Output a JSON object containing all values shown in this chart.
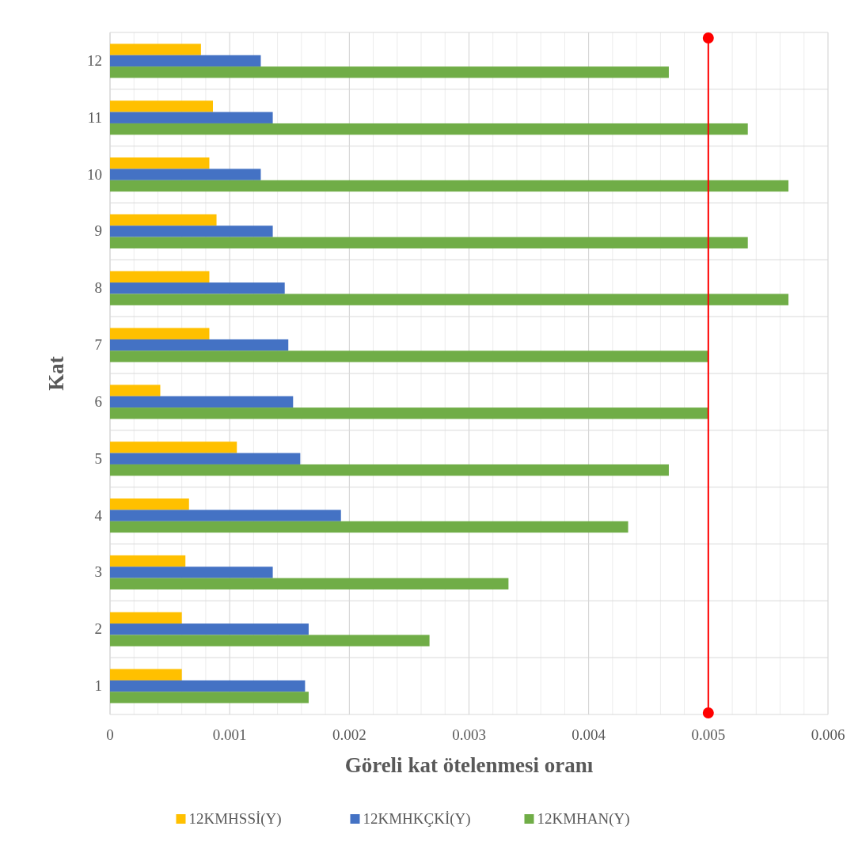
{
  "chart_data": {
    "type": "bar",
    "orientation": "horizontal",
    "xlabel": "Göreli kat ötelenmesi oranı",
    "ylabel": "Kat",
    "categories": [
      "12",
      "11",
      "10",
      "9",
      "8",
      "7",
      "6",
      "5",
      "4",
      "3",
      "2",
      "1"
    ],
    "series": [
      {
        "name": "12KMHSSİ(Y)",
        "color": "#ffc000",
        "values": [
          0.00076,
          0.00086,
          0.00083,
          0.00089,
          0.00083,
          0.00083,
          0.00042,
          0.00106,
          0.00066,
          0.00063,
          0.0006,
          0.0006
        ]
      },
      {
        "name": "12KMHKÇKİ(Y)",
        "color": "#4472c4",
        "values": [
          0.00126,
          0.00136,
          0.00126,
          0.00136,
          0.00146,
          0.00149,
          0.00153,
          0.00159,
          0.00193,
          0.00136,
          0.00166,
          0.00163
        ]
      },
      {
        "name": "12KMHAN(Y)",
        "color": "#70ad47",
        "values": [
          0.00467,
          0.00533,
          0.00567,
          0.00533,
          0.00567,
          0.005,
          0.005,
          0.00467,
          0.00433,
          0.00333,
          0.00267,
          0.00166
        ]
      }
    ],
    "xlim": [
      0,
      0.006
    ],
    "xticks": [
      0,
      0.001,
      0.002,
      0.003,
      0.004,
      0.005,
      0.006
    ],
    "ref_lines": [
      {
        "axis": "x",
        "value": 0.005,
        "color": "#ff0000"
      }
    ],
    "grid": "x",
    "legend": "bottom"
  }
}
